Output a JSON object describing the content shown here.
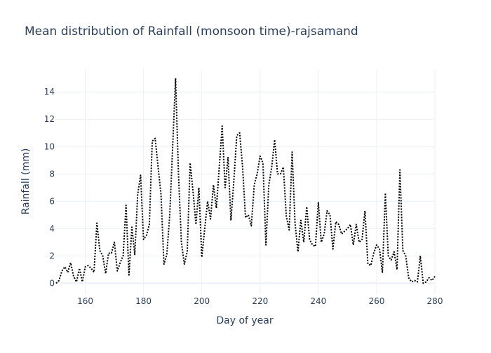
{
  "chart_data": {
    "type": "line",
    "title": "Mean distribution of Rainfall (monsoon time)-rajsamand",
    "xlabel": "Day of year",
    "ylabel": "Rainfall (mm)",
    "xlim": [
      150,
      280
    ],
    "ylim": [
      -0.8,
      15.6
    ],
    "x_ticks": [
      160,
      180,
      200,
      220,
      240,
      260,
      280
    ],
    "y_ticks": [
      0,
      2,
      4,
      6,
      8,
      10,
      12,
      14
    ],
    "grid": true,
    "line_style": "dotted",
    "line_color": "#000000",
    "series": [
      {
        "x": [
          150,
          151,
          152,
          153,
          154,
          155,
          156,
          157,
          158,
          159,
          160,
          161,
          162,
          163,
          164,
          165,
          166,
          167,
          168,
          169,
          170,
          171,
          172,
          173,
          174,
          175,
          176,
          177,
          178,
          179,
          180,
          181,
          182,
          183,
          184,
          185,
          186,
          187,
          188,
          189,
          190,
          191,
          192,
          193,
          194,
          195,
          196,
          197,
          198,
          199,
          200,
          201,
          202,
          203,
          204,
          205,
          206,
          207,
          208,
          209,
          210,
          211,
          212,
          213,
          214,
          215,
          216,
          217,
          218,
          219,
          220,
          221,
          222,
          223,
          224,
          225,
          226,
          227,
          228,
          229,
          230,
          231,
          232,
          233,
          234,
          235,
          236,
          237,
          238,
          239,
          240,
          241,
          242,
          243,
          244,
          245,
          246,
          247,
          248,
          249,
          250,
          251,
          252,
          253,
          254,
          255,
          256,
          257,
          258,
          259,
          260,
          261,
          262,
          263,
          264,
          265,
          266,
          267,
          268,
          269,
          270,
          271,
          272,
          273,
          274,
          275,
          276,
          277,
          278,
          279,
          280
        ],
        "values": [
          0.0,
          0.2,
          0.9,
          1.2,
          0.8,
          1.5,
          0.5,
          0.1,
          1.1,
          0.1,
          1.2,
          1.3,
          1.1,
          0.8,
          4.4,
          2.4,
          2.0,
          0.7,
          2.2,
          2.2,
          3.0,
          0.9,
          1.5,
          2.0,
          5.7,
          0.6,
          4.1,
          2.1,
          6.5,
          7.9,
          3.2,
          3.5,
          4.3,
          10.4,
          10.6,
          8.5,
          6.5,
          1.4,
          2.1,
          5.0,
          10.0,
          15.0,
          8.0,
          3.0,
          1.4,
          2.3,
          8.8,
          6.7,
          4.3,
          7.0,
          1.9,
          4.0,
          6.0,
          4.7,
          7.2,
          5.5,
          8.5,
          11.5,
          7.0,
          9.2,
          4.6,
          7.5,
          10.8,
          11.0,
          8.5,
          4.8,
          5.0,
          4.2,
          7.2,
          8.0,
          9.3,
          8.8,
          2.8,
          7.2,
          8.5,
          10.5,
          8.0,
          8.0,
          8.5,
          4.9,
          3.9,
          9.6,
          4.4,
          2.3,
          4.6,
          3.0,
          5.6,
          3.2,
          2.8,
          2.7,
          5.9,
          3.0,
          3.6,
          5.3,
          5.0,
          2.5,
          4.5,
          4.3,
          3.6,
          3.8,
          4.0,
          4.3,
          2.8,
          4.3,
          3.0,
          3.2,
          5.3,
          1.4,
          1.3,
          2.2,
          2.8,
          2.5,
          0.8,
          6.6,
          2.0,
          1.7,
          2.3,
          1.0,
          8.3,
          2.4,
          2.0,
          0.4,
          0.1,
          0.2,
          0.1,
          2.0,
          0.0,
          0.1,
          0.4,
          0.2,
          0.5
        ]
      }
    ]
  }
}
